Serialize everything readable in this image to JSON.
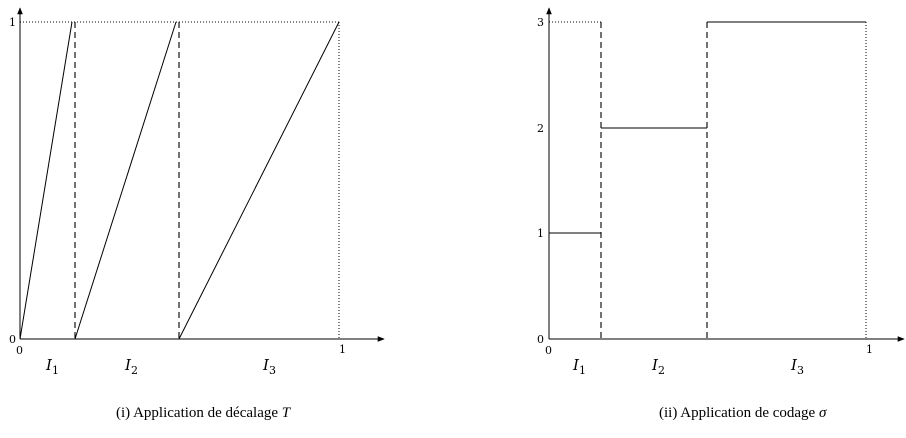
{
  "left": {
    "ticks": {
      "x0": "0",
      "x1": "1",
      "y0": "0",
      "y1": "1"
    },
    "intervals": [
      {
        "letter": "I",
        "sub": "1"
      },
      {
        "letter": "I",
        "sub": "2"
      },
      {
        "letter": "I",
        "sub": "3"
      }
    ],
    "caption": {
      "text": "(i) Application de décalage ",
      "math": "T"
    }
  },
  "right": {
    "ticks": {
      "x0": "0",
      "x1": "1",
      "y0": "0",
      "y1": "1",
      "y2": "2",
      "y3": "3"
    },
    "intervals": [
      {
        "letter": "I",
        "sub": "1"
      },
      {
        "letter": "I",
        "sub": "2"
      },
      {
        "letter": "I",
        "sub": "3"
      }
    ],
    "caption": {
      "text": "(ii) Application de codage ",
      "math": "σ"
    }
  }
}
